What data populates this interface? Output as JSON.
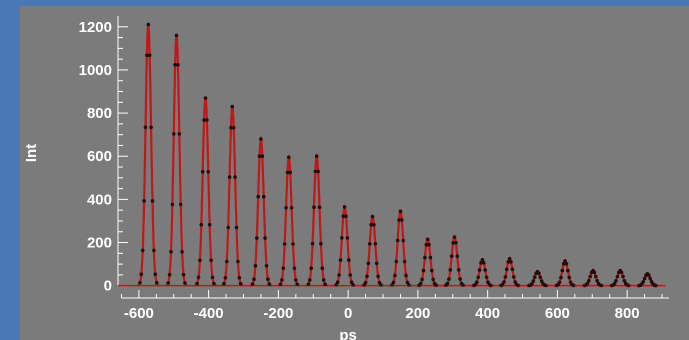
{
  "chart_data": {
    "type": "scatter",
    "title": "",
    "xlabel": "ps",
    "ylabel": "Int",
    "xlim": [
      -700,
      920
    ],
    "ylim": [
      -20,
      1250
    ],
    "xticks": [
      -600,
      -400,
      -200,
      0,
      200,
      400,
      600,
      800
    ],
    "yticks": [
      0,
      200,
      400,
      600,
      800,
      1000,
      1200
    ],
    "grid": false,
    "legend": "none",
    "peak_width_ps": 8,
    "series": [
      {
        "kind": "fit-line",
        "color": "#c01818",
        "peaks": [
          {
            "x": -573,
            "y": 1210
          },
          {
            "x": -492,
            "y": 1160
          },
          {
            "x": -409,
            "y": 870
          },
          {
            "x": -332,
            "y": 830
          },
          {
            "x": -250,
            "y": 680
          },
          {
            "x": -170,
            "y": 595
          },
          {
            "x": -90,
            "y": 600
          },
          {
            "x": -10,
            "y": 365
          },
          {
            "x": 70,
            "y": 320
          },
          {
            "x": 150,
            "y": 345
          },
          {
            "x": 228,
            "y": 215
          },
          {
            "x": 305,
            "y": 225
          },
          {
            "x": 385,
            "y": 120
          },
          {
            "x": 463,
            "y": 125
          },
          {
            "x": 543,
            "y": 65
          },
          {
            "x": 622,
            "y": 115
          },
          {
            "x": 702,
            "y": 70
          },
          {
            "x": 780,
            "y": 70
          },
          {
            "x": 858,
            "y": 55
          }
        ]
      },
      {
        "kind": "data-points",
        "color": "#2a0a0a",
        "step_ps": 4
      }
    ]
  }
}
